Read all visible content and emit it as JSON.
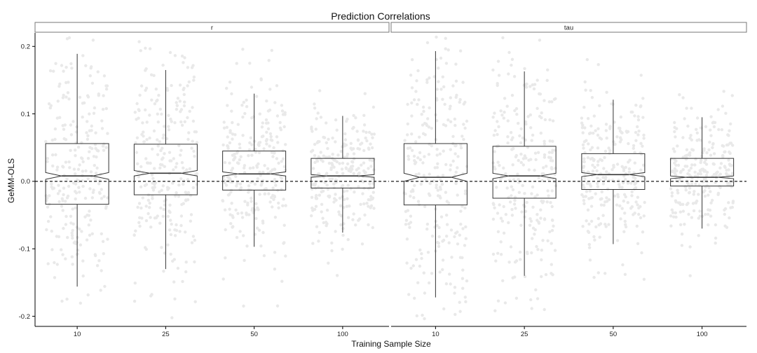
{
  "chart_data": {
    "type": "boxplot",
    "title": "Prediction Correlations",
    "xlabel": "Training Sample Size",
    "ylabel": "GeMM-OLS",
    "ylim": [
      -0.215,
      0.22
    ],
    "yticks": [
      -0.2,
      -0.1,
      0.0,
      0.1,
      0.2
    ],
    "ytick_labels": [
      "-0.2",
      "-0.1",
      "0.0",
      "0.1",
      "0.2"
    ],
    "reference_line": {
      "y": 0.0,
      "style": "dashed"
    },
    "notched": true,
    "jitter_points": true,
    "jitter_color": "#e9e9e9",
    "box_color": "#333333",
    "categories": [
      "10",
      "25",
      "50",
      "100"
    ],
    "panels": [
      {
        "label": "r",
        "boxes": [
          {
            "category": "10",
            "whisker_low": -0.156,
            "q1": -0.034,
            "median": 0.008,
            "q3": 0.056,
            "whisker_high": 0.189,
            "notch_low": 0.003,
            "notch_high": 0.013
          },
          {
            "category": "25",
            "whisker_low": -0.13,
            "q1": -0.02,
            "median": 0.012,
            "q3": 0.055,
            "whisker_high": 0.165,
            "notch_low": 0.008,
            "notch_high": 0.016
          },
          {
            "category": "50",
            "whisker_low": -0.097,
            "q1": -0.013,
            "median": 0.011,
            "q3": 0.045,
            "whisker_high": 0.13,
            "notch_low": 0.008,
            "notch_high": 0.014
          },
          {
            "category": "100",
            "whisker_low": -0.076,
            "q1": -0.01,
            "median": 0.008,
            "q3": 0.034,
            "whisker_high": 0.097,
            "notch_low": 0.006,
            "notch_high": 0.01
          }
        ]
      },
      {
        "label": "tau",
        "boxes": [
          {
            "category": "10",
            "whisker_low": -0.172,
            "q1": -0.035,
            "median": 0.006,
            "q3": 0.056,
            "whisker_high": 0.193,
            "notch_low": 0.0,
            "notch_high": 0.012
          },
          {
            "category": "25",
            "whisker_low": -0.14,
            "q1": -0.025,
            "median": 0.008,
            "q3": 0.052,
            "whisker_high": 0.163,
            "notch_low": 0.004,
            "notch_high": 0.012
          },
          {
            "category": "50",
            "whisker_low": -0.093,
            "q1": -0.012,
            "median": 0.01,
            "q3": 0.041,
            "whisker_high": 0.121,
            "notch_low": 0.007,
            "notch_high": 0.013
          },
          {
            "category": "100",
            "whisker_low": -0.07,
            "q1": -0.007,
            "median": 0.006,
            "q3": 0.034,
            "whisker_high": 0.095,
            "notch_low": 0.004,
            "notch_high": 0.008
          }
        ]
      }
    ]
  }
}
